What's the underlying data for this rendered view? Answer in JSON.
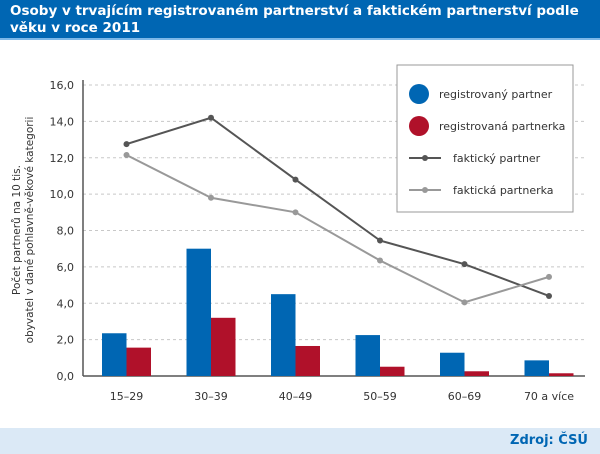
{
  "title": "Osoby v trvajícím registrovaném partnerství a faktickém partnerství podle věku v roce 2011",
  "source": "Zdroj: ČSÚ",
  "colors": {
    "blue": "#0066b3",
    "red": "#b0112a",
    "dark": "#555555",
    "light": "#999999"
  },
  "chart_data": {
    "type": "bar+line",
    "ylabel": "Počet partnerů na 10 tis. obyvatel v dané pohlavně-věkové kategorii",
    "ylim": [
      0,
      16
    ],
    "yticks": [
      "0,0",
      "2,0",
      "4,0",
      "6,0",
      "8,0",
      "10,0",
      "12,0",
      "14,0",
      "16,0"
    ],
    "categories": [
      "15–29",
      "30–39",
      "40–49",
      "50–59",
      "60–69",
      "70 a více"
    ],
    "grid": true,
    "legend_position": "top-right",
    "series": [
      {
        "name": "registrovaný partner",
        "kind": "bar",
        "color": "#0066b3",
        "values": [
          2.35,
          7.0,
          4.5,
          2.25,
          1.28,
          0.86
        ]
      },
      {
        "name": "registrovaná partnerka",
        "kind": "bar",
        "color": "#b0112a",
        "values": [
          1.56,
          3.2,
          1.65,
          0.51,
          0.26,
          0.15
        ]
      },
      {
        "name": "faktický partner",
        "kind": "line",
        "color": "#555555",
        "values": [
          12.75,
          14.2,
          10.8,
          7.45,
          6.15,
          4.4
        ]
      },
      {
        "name": "faktická partnerka",
        "kind": "line",
        "color": "#999999",
        "values": [
          12.15,
          9.8,
          9.0,
          6.35,
          4.05,
          5.45
        ]
      }
    ]
  }
}
